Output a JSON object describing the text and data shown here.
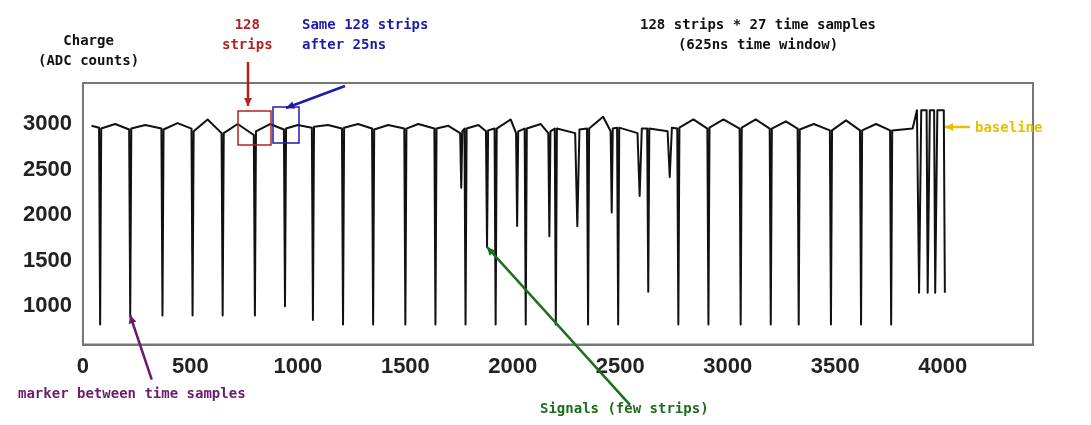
{
  "chart_data": {
    "type": "line",
    "title": "128 strips * 27 time samples\n(625ns time window)",
    "ylabel": "Charge\n(ADC counts)",
    "annotations": [
      "128\nstrips",
      "Same 128 strips\nafter 25ns",
      {
        "text": "marker between time samples",
        "x": 220,
        "y": 900
      },
      {
        "text": "Signals (few strips)",
        "x": 1880,
        "y": 1650
      },
      {
        "text": "baseline",
        "x": 4010,
        "y": 2950
      }
    ],
    "x": [
      40,
      75,
      80,
      85,
      150,
      215,
      220,
      225,
      290,
      365,
      370,
      375,
      440,
      505,
      510,
      515,
      580,
      645,
      650,
      655,
      720,
      795,
      800,
      805,
      870,
      935,
      940,
      945,
      1000,
      1065,
      1070,
      1075,
      1140,
      1205,
      1210,
      1215,
      1280,
      1345,
      1350,
      1355,
      1420,
      1495,
      1500,
      1505,
      1560,
      1635,
      1640,
      1645,
      1700,
      1755,
      1760,
      1765,
      1775,
      1780,
      1785,
      1840,
      1875,
      1880,
      1885,
      1915,
      1920,
      1925,
      1990,
      2015,
      2020,
      2025,
      2055,
      2060,
      2065,
      2130,
      2165,
      2170,
      2175,
      2195,
      2200,
      2205,
      2290,
      2300,
      2310,
      2345,
      2350,
      2355,
      2420,
      2455,
      2460,
      2465,
      2485,
      2490,
      2495,
      2580,
      2590,
      2600,
      2625,
      2630,
      2635,
      2720,
      2730,
      2740,
      2765,
      2770,
      2775,
      2840,
      2905,
      2910,
      2915,
      2980,
      3055,
      3060,
      3065,
      3130,
      3195,
      3200,
      3205,
      3270,
      3325,
      3330,
      3335,
      3400,
      3475,
      3480,
      3485,
      3550,
      3615,
      3620,
      3625,
      3690,
      3755,
      3760,
      3765,
      3860,
      3880,
      3890,
      3900,
      3925,
      3930,
      3940,
      3960,
      3965,
      3975,
      4005,
      4010
    ],
    "series": [
      {
        "color": "#111111",
        "values": [
          2980,
          2960,
          800,
          2950,
          3000,
          2940,
          900,
          2950,
          2990,
          2950,
          900,
          2940,
          3010,
          2950,
          900,
          2920,
          3050,
          2900,
          900,
          2900,
          3000,
          2880,
          900,
          2920,
          3000,
          2940,
          1000,
          2950,
          2990,
          2960,
          850,
          2970,
          2990,
          2950,
          800,
          2960,
          3000,
          2950,
          800,
          2940,
          2990,
          2950,
          800,
          2950,
          3000,
          2950,
          800,
          2950,
          2980,
          2900,
          2300,
          2920,
          2950,
          800,
          2950,
          2990,
          2920,
          1650,
          2930,
          2950,
          800,
          2950,
          3050,
          2900,
          1880,
          2920,
          2950,
          800,
          2950,
          3000,
          2900,
          1770,
          2920,
          2950,
          800,
          2950,
          2900,
          1880,
          2940,
          2950,
          800,
          2950,
          3080,
          2920,
          2030,
          2950,
          2960,
          800,
          2960,
          2900,
          2210,
          2950,
          2950,
          1160,
          2950,
          2920,
          2420,
          2960,
          2950,
          800,
          2960,
          3050,
          2950,
          800,
          2960,
          3050,
          2950,
          800,
          2960,
          3050,
          2950,
          800,
          2950,
          3030,
          2950,
          800,
          2940,
          3000,
          2930,
          800,
          2930,
          3040,
          2930,
          800,
          2930,
          3000,
          2930,
          800,
          2930,
          2950,
          3150,
          1150,
          3150,
          3150,
          1150,
          3150,
          3150,
          1150,
          3150,
          3150,
          1150
        ]
      }
    ],
    "xlim": [
      0,
      4420
    ],
    "ylim": [
      580,
      3450
    ],
    "xticks": [
      0,
      500,
      1000,
      1500,
      2000,
      2500,
      3000,
      3500,
      4000
    ],
    "yticks": [
      1000,
      1500,
      2000,
      2500,
      3000
    ],
    "grid": false,
    "legend": false,
    "marker": "none",
    "line_style": "solid"
  }
}
